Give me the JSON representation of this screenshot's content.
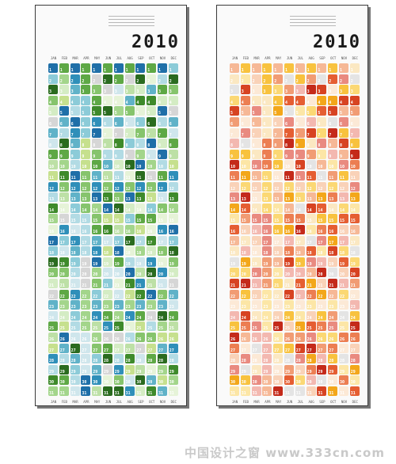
{
  "posters": [
    {
      "year": "2010",
      "theme": "green-blue"
    },
    {
      "year": "2010",
      "theme": "orange-yellow"
    }
  ],
  "months": [
    "JAN",
    "FEB",
    "MAR",
    "APR",
    "MAY",
    "JUN",
    "JUL",
    "AUG",
    "SEP",
    "OCT",
    "NOV",
    "DEC"
  ],
  "days": 31,
  "palettes": {
    "green-blue": [
      "#e6f3d8",
      "#d4ecc4",
      "#bde0a6",
      "#a3d58b",
      "#86c46c",
      "#5ea845",
      "#3e8a2b",
      "#2a6b1f",
      "#cfe6ec",
      "#b2dbe4",
      "#8ccbd8",
      "#60b2c8",
      "#2f8fb9",
      "#1f6fa8",
      "#d6d6d6",
      "#c6e08e"
    ],
    "orange-yellow": [
      "#fce9d6",
      "#f9d2b8",
      "#f6b896",
      "#f19c74",
      "#ec7e52",
      "#e55e32",
      "#d74322",
      "#c42a1a",
      "#fce6a6",
      "#fbd874",
      "#f8c23e",
      "#f3a71a",
      "#e4e4e4",
      "#f3b8b0",
      "#e98a80",
      "#fbe8c2"
    ]
  },
  "watermark": "中国设计之窗 www.333cn.com"
}
